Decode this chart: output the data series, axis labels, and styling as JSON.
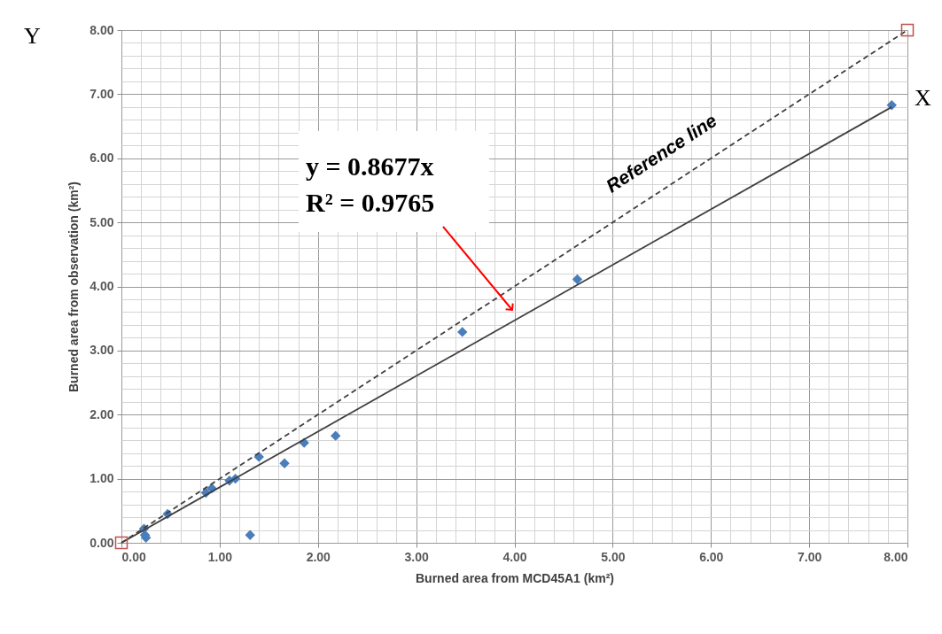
{
  "chart_data": {
    "type": "scatter",
    "xlabel": "Burned area from MCD45A1 (km²)",
    "ylabel": "Burned area from observation (km²)",
    "xlim": [
      0,
      8
    ],
    "ylim": [
      0,
      8
    ],
    "xticks": [
      {
        "value": 0,
        "label": "0.00"
      },
      {
        "value": 1,
        "label": "1.00"
      },
      {
        "value": 2,
        "label": "2.00"
      },
      {
        "value": 3,
        "label": "3.00"
      },
      {
        "value": 4,
        "label": "4.00"
      },
      {
        "value": 5,
        "label": "5.00"
      },
      {
        "value": 6,
        "label": "6.00"
      },
      {
        "value": 7,
        "label": "7.00"
      },
      {
        "value": 8,
        "label": "8.00"
      }
    ],
    "yticks": [
      {
        "value": 0,
        "label": "0.00"
      },
      {
        "value": 1,
        "label": "1.00"
      },
      {
        "value": 2,
        "label": "2.00"
      },
      {
        "value": 3,
        "label": "3.00"
      },
      {
        "value": 4,
        "label": "4.00"
      },
      {
        "value": 5,
        "label": "5.00"
      },
      {
        "value": 6,
        "label": "6.00"
      },
      {
        "value": 7,
        "label": "7.00"
      },
      {
        "value": 8,
        "label": "8.00"
      }
    ],
    "grid": true,
    "series": [
      {
        "marker": "diamond",
        "color": "#4a7ebb",
        "x": [
          0.23,
          0.24,
          0.25,
          0.47,
          0.86,
          0.92,
          1.1,
          1.16,
          1.31,
          1.4,
          1.66,
          1.86,
          2.18,
          3.47,
          4.64,
          7.84
        ],
        "values": [
          0.22,
          0.12,
          0.08,
          0.45,
          0.78,
          0.85,
          0.97,
          1.0,
          0.12,
          1.34,
          1.24,
          1.56,
          1.67,
          3.29,
          4.11,
          6.83
        ]
      },
      {
        "type": "line",
        "line_style": "solid",
        "color": "#404040",
        "x": [
          0,
          7.84
        ],
        "values": [
          0,
          6.8
        ]
      },
      {
        "type": "line",
        "line_style": "dashed",
        "color": "#404040",
        "x": [
          0,
          8
        ],
        "values": [
          0,
          8
        ]
      },
      {
        "type": "scatter",
        "marker": "square",
        "color": "#c0504d",
        "x": [
          0,
          8
        ],
        "values": [
          0,
          8
        ]
      }
    ],
    "annotations": [
      "y = 0.8677x",
      "R² = 0.9765",
      "Reference line",
      "Y",
      "X"
    ]
  }
}
